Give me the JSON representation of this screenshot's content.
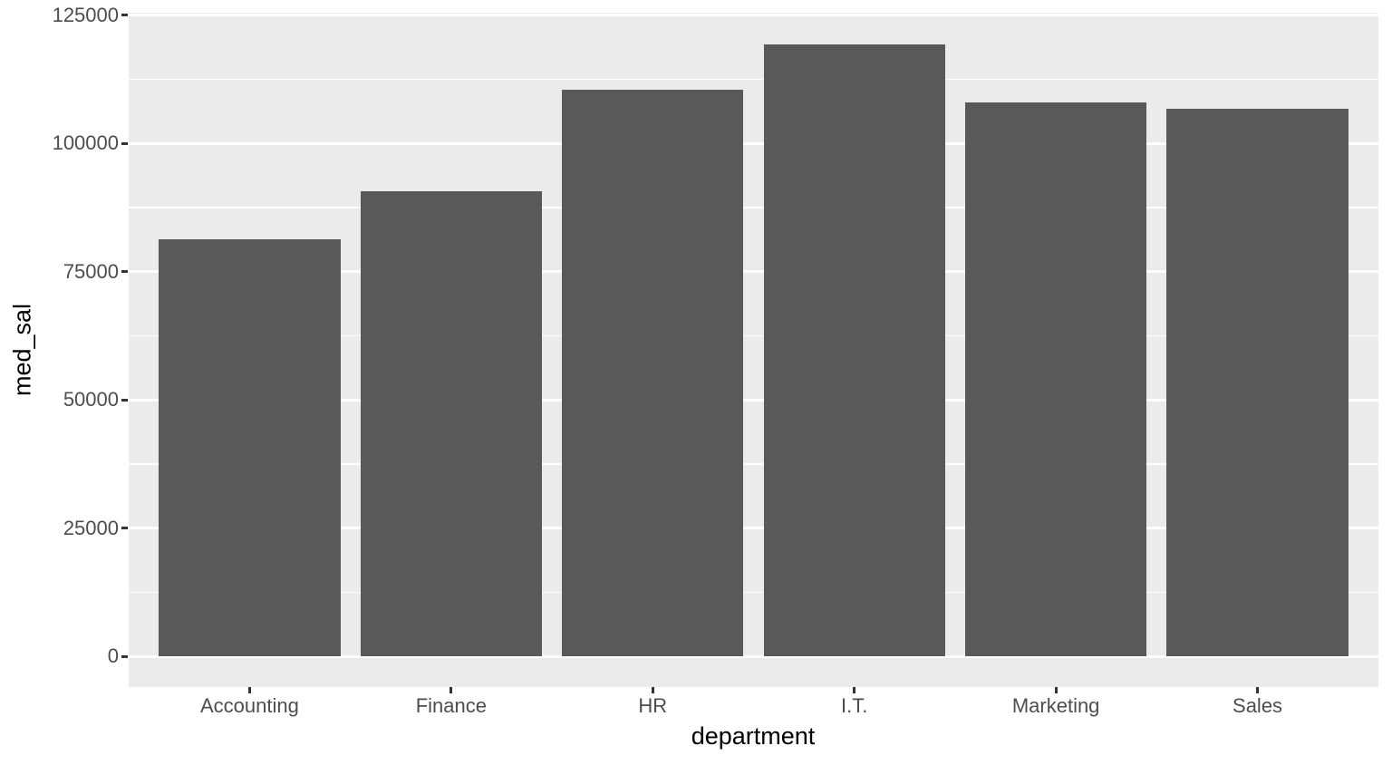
{
  "chart_data": {
    "type": "bar",
    "title": "",
    "xlabel": "department",
    "ylabel": "med_sal",
    "categories": [
      "Accounting",
      "Finance",
      "HR",
      "I.T.",
      "Marketing",
      "Sales"
    ],
    "values": [
      81300,
      90600,
      110450,
      119350,
      108000,
      106800
    ],
    "series": [
      {
        "name": "med_sal",
        "values": [
          81300,
          90600,
          110450,
          119350,
          108000,
          106800
        ]
      }
    ],
    "y_ticks": [
      0,
      25000,
      50000,
      75000,
      100000,
      125000
    ],
    "y_minor_ticks": [
      12500,
      37500,
      62500,
      87500,
      112500
    ],
    "ylim": [
      -6000,
      125500
    ],
    "bar_rel_width": 0.9,
    "grid": "major-and-minor",
    "legend_position": "none",
    "style": "ggplot2-grey-theme",
    "colors": {
      "bar_fill": "#595959",
      "panel_bg": "#EBEBEB",
      "grid": "#FFFFFF",
      "tick_mark": "#333333",
      "tick_label": "#4D4D4D",
      "axis_title": "#000000",
      "page_bg": "#FFFFFF"
    }
  }
}
